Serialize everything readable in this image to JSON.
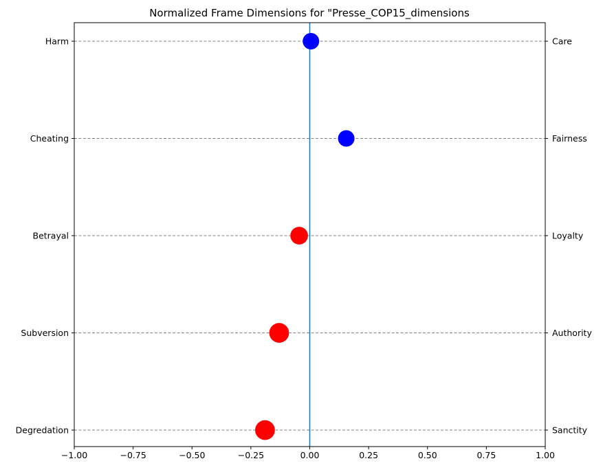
{
  "chart_data": {
    "type": "scatter",
    "title": "Normalized Frame Dimensions for \"Presse_COP15_dimensions",
    "xlim": [
      -1.0,
      1.0
    ],
    "x_ticks": [
      "−1.00",
      "−0.75",
      "−0.50",
      "−0.25",
      "0.00",
      "0.25",
      "0.50",
      "0.75",
      "1.00"
    ],
    "x_tick_values": [
      -1.0,
      -0.75,
      -0.5,
      -0.25,
      0.0,
      0.25,
      0.5,
      0.75,
      1.0
    ],
    "left_labels": [
      "Harm",
      "Cheating",
      "Betrayal",
      "Subversion",
      "Degredation"
    ],
    "right_labels": [
      "Care",
      "Fairness",
      "Loyalty",
      "Authority",
      "Sanctity"
    ],
    "grid": "horizontal dashed",
    "reference_line_x": 0.0,
    "reference_line_color": "#1f77b4",
    "points": [
      {
        "x": 0.005,
        "color": "#0000ff",
        "size": 1.0
      },
      {
        "x": 0.155,
        "color": "#0000ff",
        "size": 1.0
      },
      {
        "x": -0.045,
        "color": "#ff0000",
        "size": 1.07
      },
      {
        "x": -0.13,
        "color": "#ff0000",
        "size": 1.2
      },
      {
        "x": -0.19,
        "color": "#ff0000",
        "size": 1.2
      }
    ]
  }
}
